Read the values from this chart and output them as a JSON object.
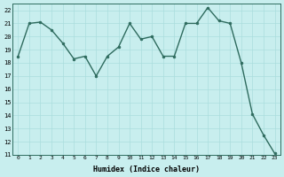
{
  "x": [
    0,
    1,
    2,
    3,
    4,
    5,
    6,
    7,
    8,
    9,
    10,
    11,
    12,
    13,
    14,
    15,
    16,
    17,
    18,
    19,
    20,
    21,
    22,
    23
  ],
  "y": [
    18.5,
    21.0,
    21.1,
    20.5,
    19.5,
    18.3,
    18.5,
    17.0,
    18.5,
    19.2,
    21.0,
    19.8,
    20.0,
    18.5,
    18.5,
    21.0,
    21.0,
    22.2,
    21.2,
    21.0,
    18.0,
    14.1,
    12.5,
    11.1
  ],
  "line_color": "#2e6b5e",
  "marker_color": "#2e6b5e",
  "bg_color": "#c8eeee",
  "grid_major_color": "#aadddd",
  "grid_minor_color": "#c0e8e8",
  "xlabel": "Humidex (Indice chaleur)",
  "ylim": [
    11,
    22.5
  ],
  "xlim": [
    -0.5,
    23.5
  ],
  "yticks": [
    11,
    12,
    13,
    14,
    15,
    16,
    17,
    18,
    19,
    20,
    21,
    22
  ],
  "xticks": [
    0,
    1,
    2,
    3,
    4,
    5,
    6,
    7,
    8,
    9,
    10,
    11,
    12,
    13,
    14,
    15,
    16,
    17,
    18,
    19,
    20,
    21,
    22,
    23
  ]
}
